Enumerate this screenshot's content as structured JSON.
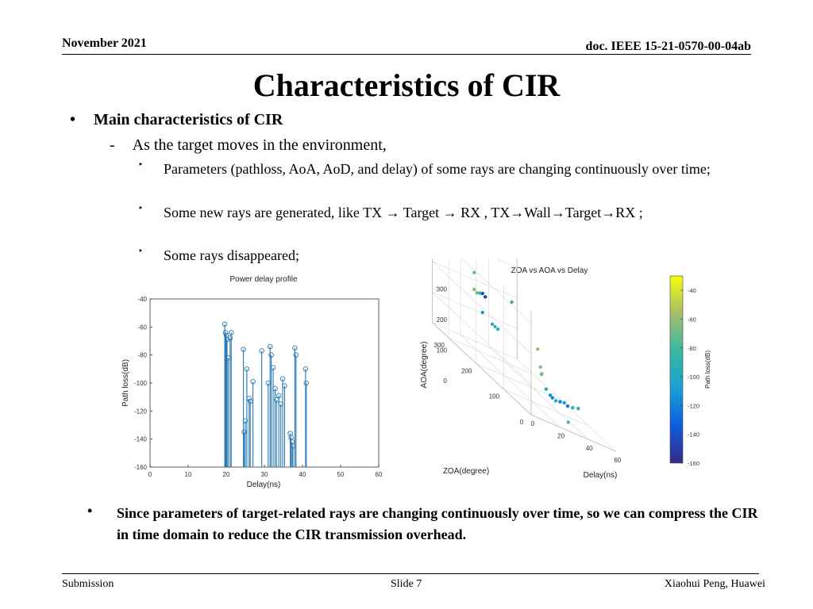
{
  "header": {
    "date": "November 2021",
    "doc_id": "doc. IEEE 15-21-0570-00-04ab"
  },
  "title": "Characteristics of CIR",
  "content": {
    "bullet1": "Main characteristics of CIR",
    "bullet1_marker": "•",
    "sub_marker": "-",
    "sub1": "As the target moves in the environment,",
    "item_marker": "‣",
    "items": [
      "Parameters (pathloss, AoA, AoD, and delay) of some rays are changing continuously over time;",
      "Some new rays are generated, like TX → Target → RX , TX→Wall→Target→RX ;",
      "Some rays disappeared;"
    ],
    "bullet2": "Since parameters of target-related rays are changing continuously over time, so we can compress the CIR in time domain to reduce the CIR transmission overhead."
  },
  "footer": {
    "left": "Submission",
    "center": "Slide 7",
    "right": "Xiaohui Peng, Huawei"
  },
  "chart_data": [
    {
      "type": "stem",
      "title": "Power delay profile",
      "xlabel": "Delay(ns)",
      "ylabel": "Path loss(dB)",
      "xlim": [
        0,
        60
      ],
      "ylim": [
        -160,
        -40
      ],
      "xticks": [
        0,
        10,
        20,
        30,
        40,
        50,
        60
      ],
      "yticks": [
        -40,
        -60,
        -80,
        -100,
        -120,
        -140,
        -160
      ],
      "series_color": "#2a7ab5",
      "points": [
        {
          "x": 19.6,
          "y": -58
        },
        {
          "x": 19.8,
          "y": -64
        },
        {
          "x": 20.0,
          "y": -66
        },
        {
          "x": 20.2,
          "y": -69
        },
        {
          "x": 20.5,
          "y": -82
        },
        {
          "x": 21.0,
          "y": -68
        },
        {
          "x": 21.3,
          "y": -64
        },
        {
          "x": 24.5,
          "y": -76
        },
        {
          "x": 24.7,
          "y": -135
        },
        {
          "x": 25.0,
          "y": -127
        },
        {
          "x": 25.4,
          "y": -90
        },
        {
          "x": 26.0,
          "y": -111
        },
        {
          "x": 26.3,
          "y": -113
        },
        {
          "x": 27.0,
          "y": -99
        },
        {
          "x": 29.3,
          "y": -77
        },
        {
          "x": 31.0,
          "y": -100
        },
        {
          "x": 31.5,
          "y": -74
        },
        {
          "x": 31.8,
          "y": -80
        },
        {
          "x": 32.3,
          "y": -89
        },
        {
          "x": 32.8,
          "y": -104
        },
        {
          "x": 33.2,
          "y": -112
        },
        {
          "x": 33.8,
          "y": -109
        },
        {
          "x": 34.3,
          "y": -115
        },
        {
          "x": 34.8,
          "y": -97
        },
        {
          "x": 35.3,
          "y": -102
        },
        {
          "x": 36.8,
          "y": -136
        },
        {
          "x": 37.0,
          "y": -139
        },
        {
          "x": 37.3,
          "y": -142
        },
        {
          "x": 37.5,
          "y": -145
        },
        {
          "x": 38.0,
          "y": -75
        },
        {
          "x": 38.3,
          "y": -80
        },
        {
          "x": 40.8,
          "y": -90
        },
        {
          "x": 41.0,
          "y": -100
        }
      ]
    },
    {
      "type": "scatter3d",
      "title": "ZOA vs AOA vs Delay",
      "xlabel": "Delay(ns)",
      "ylabel": "ZOA(degree)",
      "zlabel": "AOA(degree)",
      "delay_ticks": [
        0,
        20,
        40,
        60
      ],
      "zoa_ticks": [
        0,
        100,
        200,
        300
      ],
      "aoa_ticks": [
        0,
        100,
        200,
        300
      ],
      "colorbar_label": "Path loss(dB)",
      "colorbar_ticks": [
        -40,
        -60,
        -80,
        -100,
        -120,
        -140,
        -160
      ],
      "colorbar_range": [
        -160,
        -30
      ],
      "points": [
        {
          "delay": 18,
          "zoa": 300,
          "aoa": 250,
          "pl": -70
        },
        {
          "delay": 18,
          "zoa": 300,
          "aoa": 195,
          "pl": -65
        },
        {
          "delay": 19,
          "zoa": 295,
          "aoa": 190,
          "pl": -70
        },
        {
          "delay": 20,
          "zoa": 290,
          "aoa": 195,
          "pl": -80
        },
        {
          "delay": 21,
          "zoa": 285,
          "aoa": 200,
          "pl": -140
        },
        {
          "delay": 22,
          "zoa": 280,
          "aoa": 195,
          "pl": -150
        },
        {
          "delay": 20,
          "zoa": 280,
          "aoa": 140,
          "pl": -110
        },
        {
          "delay": 25,
          "zoa": 270,
          "aoa": 120,
          "pl": -95
        },
        {
          "delay": 26,
          "zoa": 265,
          "aoa": 118,
          "pl": -88
        },
        {
          "delay": 27,
          "zoa": 260,
          "aoa": 116,
          "pl": -90
        },
        {
          "delay": 31,
          "zoa": 230,
          "aoa": 238,
          "pl": -88
        },
        {
          "delay": 28,
          "zoa": 120,
          "aoa": 170,
          "pl": -60
        },
        {
          "delay": 28,
          "zoa": 110,
          "aoa": 120,
          "pl": -65
        },
        {
          "delay": 29,
          "zoa": 110,
          "aoa": 100,
          "pl": -62
        },
        {
          "delay": 29,
          "zoa": 112,
          "aoa": 96,
          "pl": -66
        },
        {
          "delay": 30,
          "zoa": 100,
          "aoa": 60,
          "pl": -100
        },
        {
          "delay": 32,
          "zoa": 95,
          "aoa": 48,
          "pl": -115
        },
        {
          "delay": 33,
          "zoa": 92,
          "aoa": 44,
          "pl": -120
        },
        {
          "delay": 35,
          "zoa": 90,
          "aoa": 40,
          "pl": -105
        },
        {
          "delay": 37,
          "zoa": 85,
          "aoa": 45,
          "pl": -120
        },
        {
          "delay": 39,
          "zoa": 80,
          "aoa": 50,
          "pl": -110
        },
        {
          "delay": 41,
          "zoa": 78,
          "aoa": 45,
          "pl": -125
        },
        {
          "delay": 43,
          "zoa": 70,
          "aoa": 50,
          "pl": -90
        },
        {
          "delay": 45,
          "zoa": 60,
          "aoa": 60,
          "pl": -100
        },
        {
          "delay": 34,
          "zoa": 40,
          "aoa": 10,
          "pl": -80
        }
      ]
    }
  ]
}
